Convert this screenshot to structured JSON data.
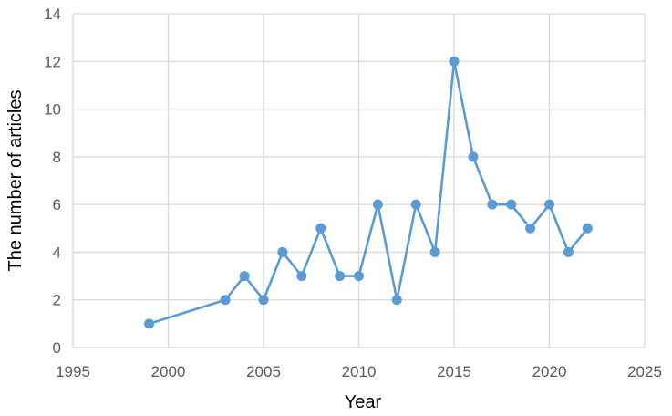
{
  "chart_data": {
    "type": "line",
    "title": "",
    "xlabel": "Year",
    "ylabel": "The number of articles",
    "xlim": [
      1995,
      2025
    ],
    "ylim": [
      0,
      14
    ],
    "x_ticks": [
      1995,
      2000,
      2005,
      2010,
      2015,
      2020,
      2025
    ],
    "y_ticks": [
      0,
      2,
      4,
      6,
      8,
      10,
      12,
      14
    ],
    "grid": true,
    "legend": "none",
    "series": [
      {
        "color": "#5b9bd5",
        "x": [
          1999,
          2003,
          2004,
          2005,
          2006,
          2007,
          2008,
          2009,
          2010,
          2011,
          2012,
          2013,
          2014,
          2015,
          2016,
          2017,
          2018,
          2019,
          2020,
          2021,
          2022
        ],
        "y": [
          1,
          2,
          3,
          2,
          4,
          3,
          5,
          3,
          3,
          6,
          2,
          6,
          4,
          12,
          8,
          6,
          6,
          5,
          6,
          4,
          5
        ]
      }
    ]
  }
}
